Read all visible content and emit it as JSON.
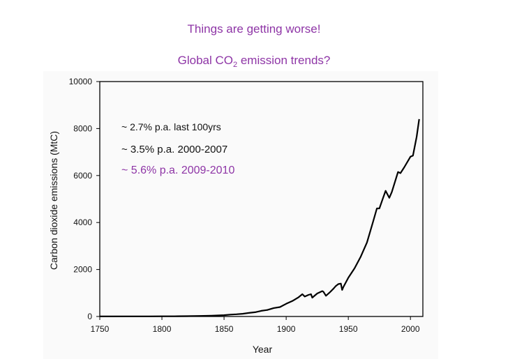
{
  "slide": {
    "title_line1": "Things are getting worse!",
    "title_line2_prefix": "Global CO",
    "title_line2_sub": "2",
    "title_line2_suffix": " emission trends?"
  },
  "colors": {
    "accent": "#8e35a6",
    "text": "#111111",
    "line": "#000000"
  },
  "chart_data": {
    "type": "line",
    "xlabel": "Year",
    "ylabel": "Carbon dioxide emissions (MtC)",
    "xlim": [
      1750,
      2010
    ],
    "ylim": [
      0,
      10000
    ],
    "xticks": [
      1750,
      1800,
      1850,
      1900,
      1950,
      2000
    ],
    "yticks": [
      0,
      2000,
      4000,
      6000,
      8000,
      10000
    ],
    "annotations": [
      {
        "text": "~ 2.7% p.a. last 100yrs",
        "color": "#111111"
      },
      {
        "text": "~ 3.5% p.a. 2000-2007",
        "color": "#111111"
      },
      {
        "text": "~ 5.6% p.a. 2009-2010",
        "color": "#8e35a6"
      }
    ],
    "series": [
      {
        "name": "Global CO2 emissions",
        "x": [
          1750,
          1760,
          1770,
          1780,
          1790,
          1800,
          1810,
          1820,
          1830,
          1840,
          1850,
          1855,
          1860,
          1865,
          1870,
          1875,
          1880,
          1885,
          1890,
          1895,
          1900,
          1905,
          1910,
          1913,
          1915,
          1918,
          1920,
          1921,
          1925,
          1929,
          1930,
          1932,
          1935,
          1938,
          1940,
          1942,
          1944,
          1945,
          1946,
          1950,
          1955,
          1960,
          1965,
          1970,
          1973,
          1975,
          1978,
          1980,
          1983,
          1985,
          1990,
          1992,
          1995,
          2000,
          2002,
          2005,
          2007
        ],
        "y": [
          3,
          4,
          5,
          6,
          7,
          8,
          10,
          14,
          25,
          35,
          55,
          80,
          95,
          115,
          150,
          180,
          240,
          280,
          360,
          400,
          540,
          660,
          820,
          950,
          850,
          920,
          950,
          800,
          980,
          1080,
          1050,
          880,
          1020,
          1180,
          1300,
          1380,
          1400,
          1130,
          1250,
          1650,
          2050,
          2550,
          3150,
          4050,
          4600,
          4600,
          5050,
          5350,
          5050,
          5300,
          6150,
          6100,
          6350,
          6800,
          6850,
          7650,
          8400
        ]
      }
    ]
  }
}
